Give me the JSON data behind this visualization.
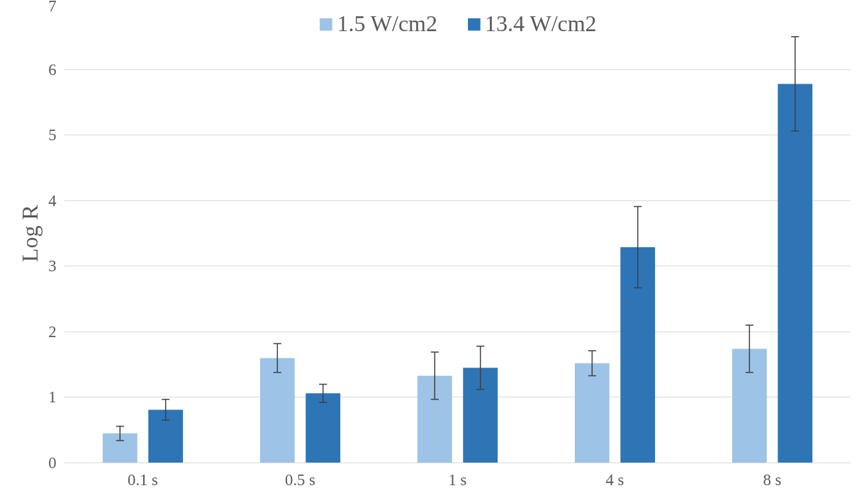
{
  "chart_data": {
    "type": "bar",
    "ylabel": "Log R",
    "categories": [
      "0.1 s",
      "0.5 s",
      "1 s",
      "4 s",
      "8 s"
    ],
    "series": [
      {
        "name": "1.5 W/cm2",
        "color": "#9dc3e6",
        "values": [
          0.45,
          1.6,
          1.33,
          1.52,
          1.74
        ],
        "errors": [
          0.11,
          0.22,
          0.36,
          0.19,
          0.36
        ]
      },
      {
        "name": "13.4 W/cm2",
        "color": "#2e75b6",
        "values": [
          0.81,
          1.06,
          1.45,
          3.29,
          5.78
        ],
        "errors": [
          0.16,
          0.14,
          0.33,
          0.62,
          0.72
        ]
      }
    ],
    "ylim": [
      0,
      7
    ],
    "yticks": [
      0,
      1,
      2,
      3,
      4,
      5,
      6,
      7
    ],
    "grid": "y",
    "legend": "top"
  }
}
